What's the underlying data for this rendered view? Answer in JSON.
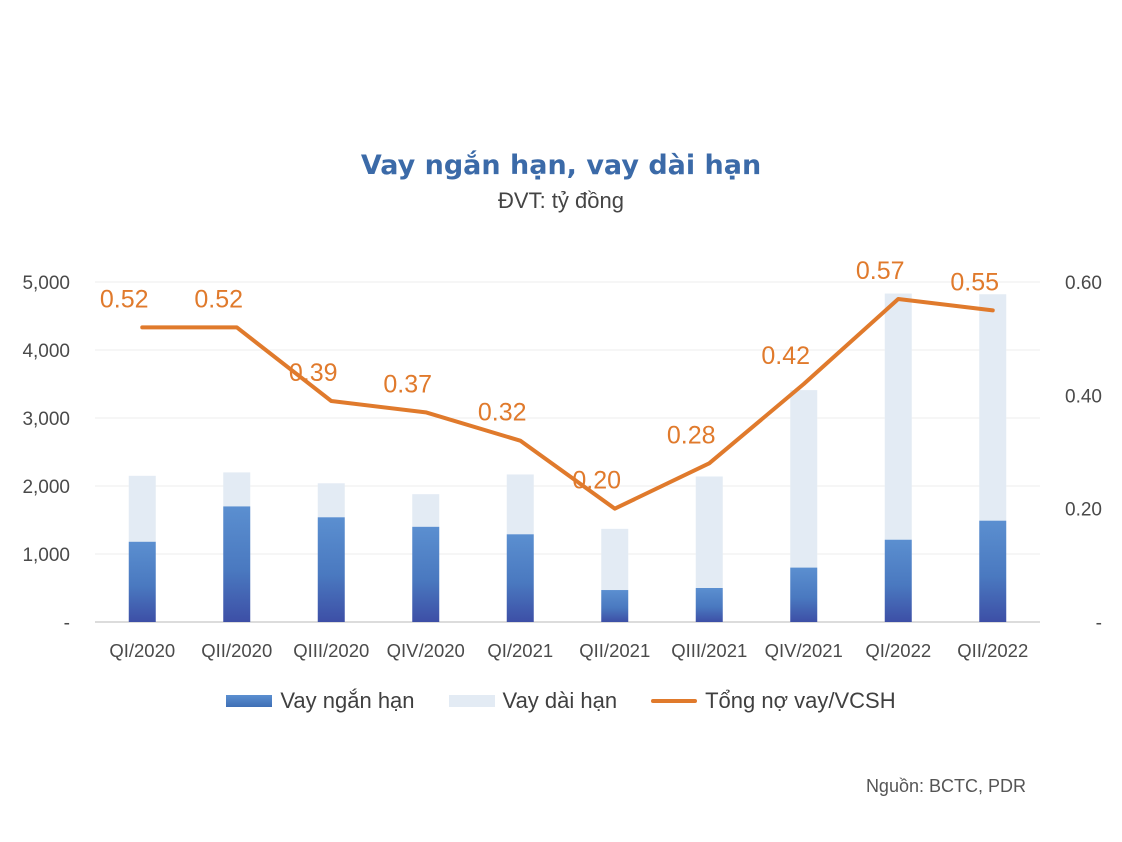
{
  "title": "Vay ngắn hạn, vay dài hạn",
  "subtitle": "ĐVT: tỷ đồng",
  "source": "Nguồn: BCTC, PDR",
  "colors": {
    "short_term": "#4a7cc0",
    "long_term": "#e3ebf4",
    "ratio_line": "#e07a2c",
    "title": "#3b6aa8"
  },
  "chart_data": {
    "type": "bar",
    "stacked": true,
    "categories": [
      "QI/2020",
      "QII/2020",
      "QIII/2020",
      "QIV/2020",
      "QI/2021",
      "QII/2021",
      "QIII/2021",
      "QIV/2021",
      "QI/2022",
      "QII/2022"
    ],
    "series": [
      {
        "name": "Vay ngắn hạn",
        "type": "bar",
        "axis": "left",
        "values": [
          1180,
          1700,
          1540,
          1400,
          1290,
          470,
          500,
          800,
          1210,
          1490
        ]
      },
      {
        "name": "Vay dài hạn",
        "type": "bar",
        "axis": "left",
        "values": [
          970,
          500,
          500,
          480,
          880,
          900,
          1640,
          2610,
          3620,
          3330
        ]
      },
      {
        "name": "Tổng nợ vay/VCSH",
        "type": "line",
        "axis": "right",
        "values": [
          0.52,
          0.52,
          0.39,
          0.37,
          0.32,
          0.2,
          0.28,
          0.42,
          0.57,
          0.55
        ],
        "labels": [
          "0.52",
          "0.52",
          "0.39",
          "0.37",
          "0.32",
          "0.20",
          "0.28",
          "0.42",
          "0.57",
          "0.55"
        ]
      }
    ],
    "y_left": {
      "ylim": [
        0,
        5000
      ],
      "ticks": [
        0,
        1000,
        2000,
        3000,
        4000,
        5000
      ],
      "tick_labels": [
        "-",
        "1,000",
        "2,000",
        "3,000",
        "4,000",
        "5,000"
      ]
    },
    "y_right": {
      "ylim": [
        0,
        0.6
      ],
      "ticks": [
        0,
        0.2,
        0.4,
        0.6
      ],
      "tick_labels": [
        "-",
        "0.20",
        "0.40",
        "0.60"
      ]
    },
    "grid": true,
    "legend": "bottom"
  }
}
